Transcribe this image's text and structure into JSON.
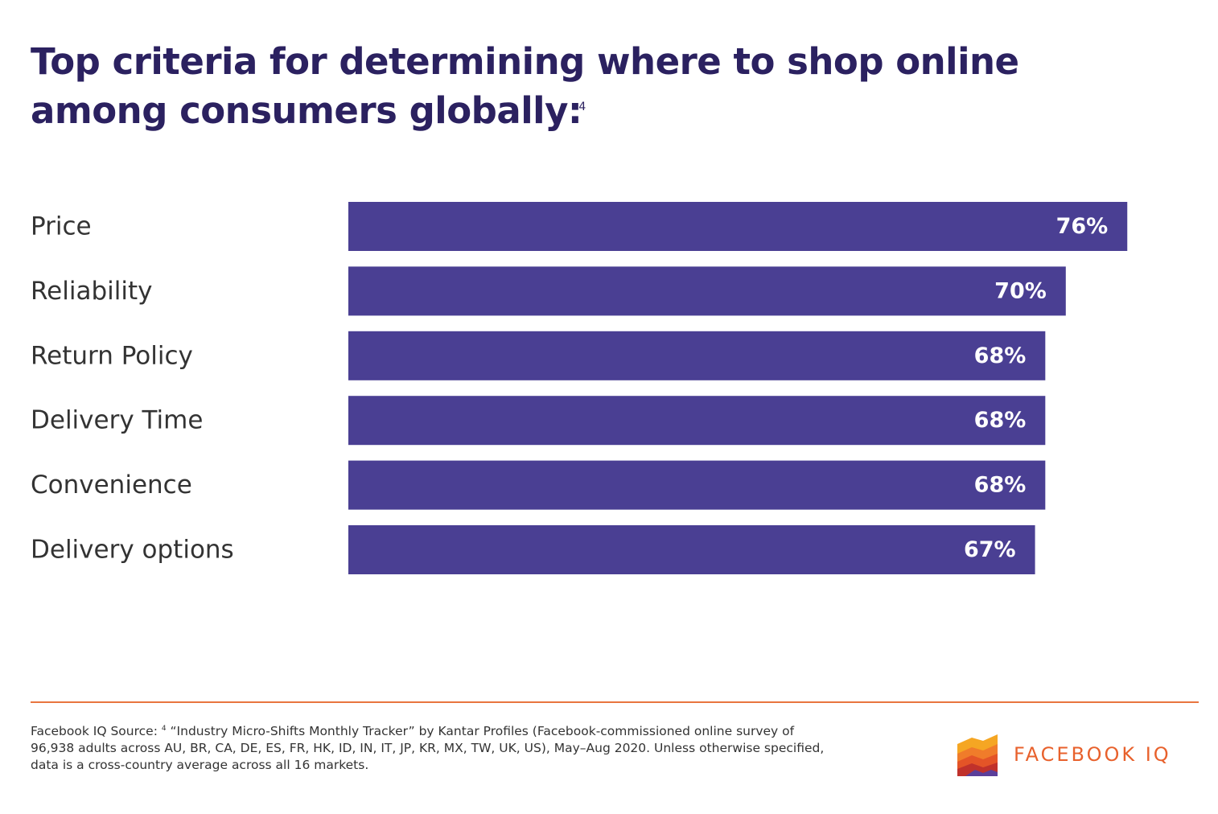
{
  "title": {
    "text": "Top criteria for determining where to shop online among consumers globally:",
    "footnote": "4"
  },
  "chart_data": {
    "type": "bar",
    "orientation": "horizontal",
    "categories": [
      "Price",
      "Reliability",
      "Return Policy",
      "Delivery Time",
      "Convenience",
      "Delivery options"
    ],
    "values": [
      76,
      70,
      68,
      68,
      68,
      67
    ],
    "value_labels": [
      "76%",
      "70%",
      "68%",
      "68%",
      "68%",
      "67%"
    ],
    "unit": "%",
    "bar_color": "#4a3f93",
    "grid": false,
    "legend": "none"
  },
  "footer": {
    "source_label": "Facebook IQ Source:",
    "footnote_number": "4",
    "source_text": "“Industry Micro-Shifts Monthly Tracker” by Kantar Profiles (Facebook-commissioned online survey of 96,938 adults across AU, BR, CA, DE, ES, FR, HK, ID, IN, IT, JP, KR, MX, TW, UK, US), May–Aug 2020. Unless otherwise specified, data is a cross-country average across all 16 markets.",
    "divider_color": "#e8753f"
  },
  "logo": {
    "text": "FACEBOOK IQ",
    "icon": "facebook-iq-logo-icon",
    "color": "#e8612c"
  }
}
